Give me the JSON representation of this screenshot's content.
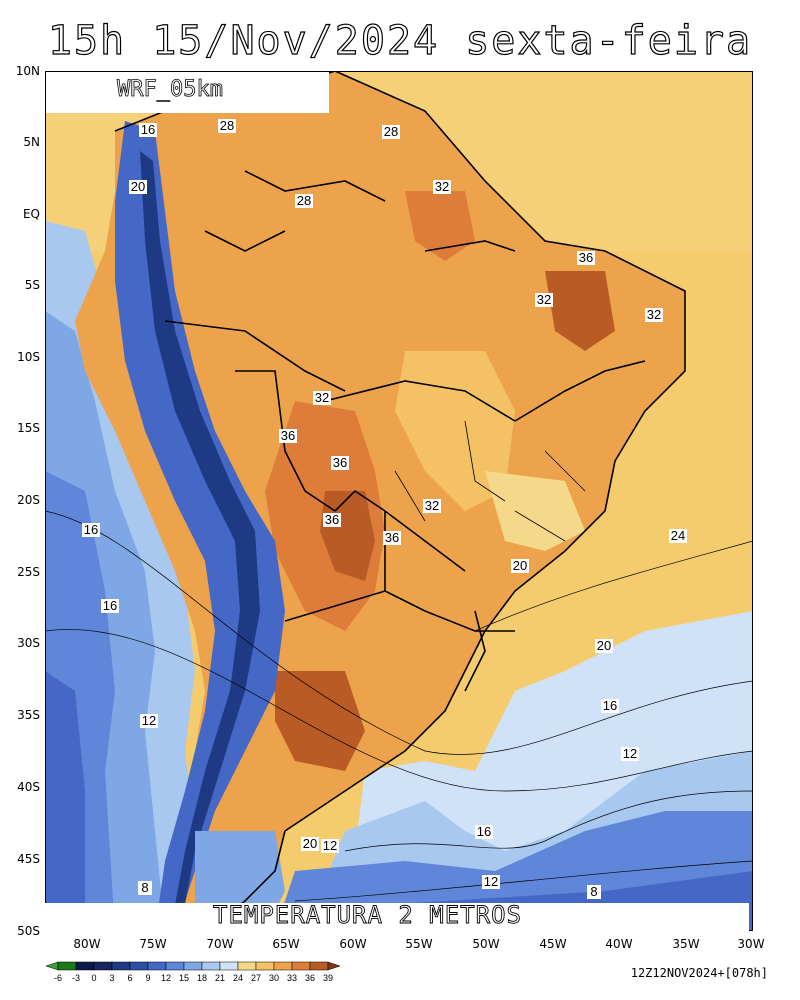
{
  "title": "15h 15/Nov/2024 sexta-feira",
  "model": "WRF_05km",
  "variable": "TEMPERATURA 2 METROS",
  "run_info": "12Z12NOV2024+[078h]",
  "lat_labels": [
    "10N",
    "5N",
    "EQ",
    "5S",
    "10S",
    "15S",
    "20S",
    "25S",
    "30S",
    "35S",
    "40S",
    "45S",
    "50S"
  ],
  "lon_labels": [
    "80W",
    "75W",
    "70W",
    "65W",
    "60W",
    "55W",
    "50W",
    "45W",
    "40W",
    "35W",
    "30W"
  ],
  "colorbar": {
    "ticks": [
      "-6",
      "-3",
      "0",
      "3",
      "6",
      "9",
      "12",
      "15",
      "18",
      "21",
      "24",
      "27",
      "30",
      "33",
      "36",
      "39"
    ],
    "colors": [
      "#3e9b3e",
      "#1a7a1a",
      "#0b1a4a",
      "#16265f",
      "#1f3a84",
      "#2c4fa6",
      "#4568c6",
      "#5f86d8",
      "#7fa7e6",
      "#a8c8f0",
      "#cfe2f7",
      "#f5d98a",
      "#f4c265",
      "#eda34c",
      "#dd7d39",
      "#b85b25",
      "#7a3b14"
    ]
  },
  "isotherm_labels": [
    "8",
    "12",
    "16",
    "20",
    "24",
    "28",
    "32",
    "36"
  ]
}
